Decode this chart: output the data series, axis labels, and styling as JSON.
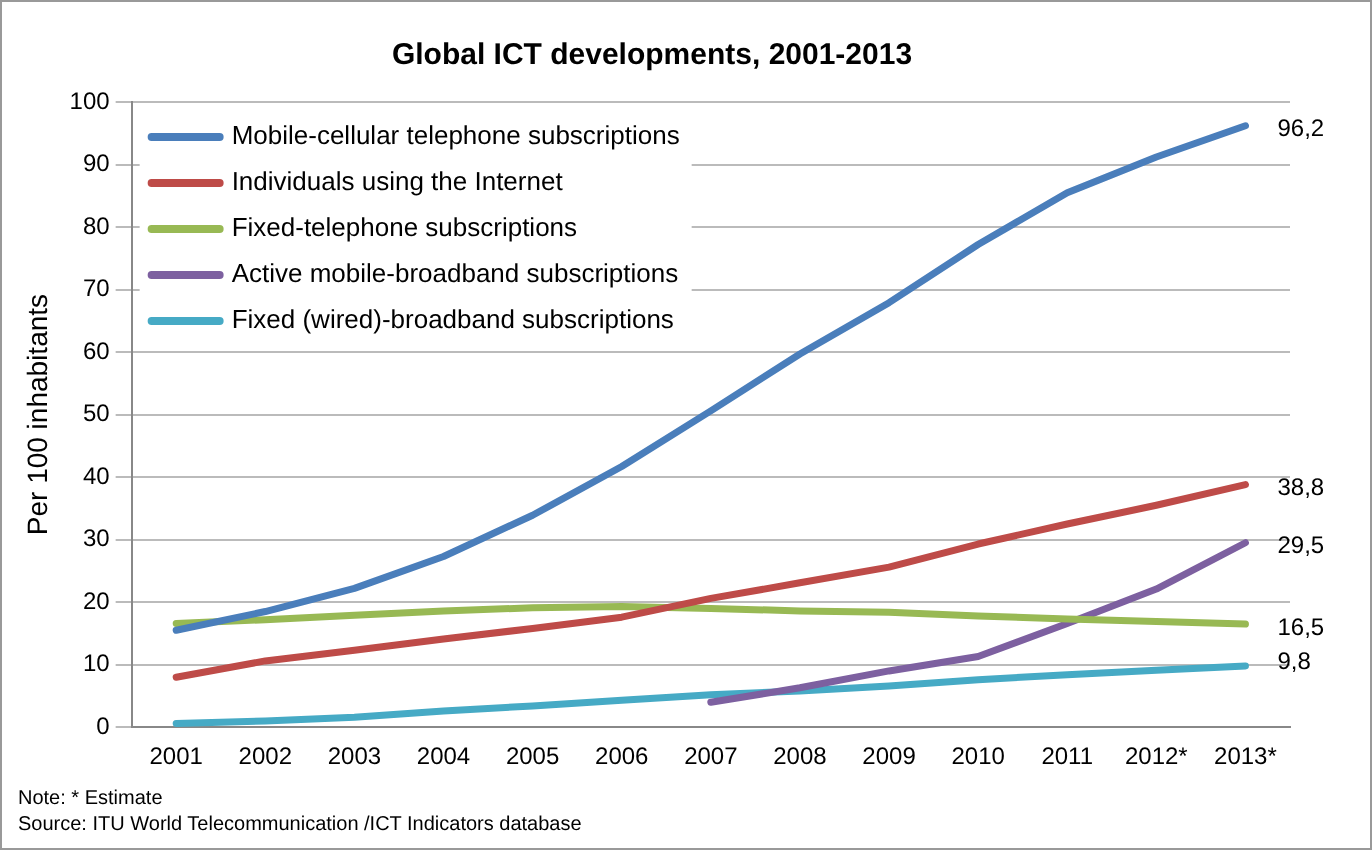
{
  "chart_data": {
    "type": "line",
    "title": "Global ICT developments, 2001-2013",
    "ylabel": "Per 100 inhabitants",
    "categories": [
      "2001",
      "2002",
      "2003",
      "2004",
      "2005",
      "2006",
      "2007",
      "2008",
      "2009",
      "2010",
      "2011",
      "2012*",
      "2013*"
    ],
    "series": [
      {
        "name": "Mobile-cellular telephone subscriptions",
        "color": "#4a7ebb",
        "values": [
          15.5,
          18.5,
          22.2,
          27.3,
          33.9,
          41.7,
          50.6,
          59.7,
          67.9,
          77.2,
          85.5,
          91.2,
          96.2
        ],
        "value_labels": [
          null,
          null,
          null,
          null,
          null,
          null,
          null,
          null,
          null,
          null,
          null,
          null,
          "96,2"
        ]
      },
      {
        "name": "Individuals using the Internet",
        "color": "#be4b48",
        "values": [
          8.0,
          10.6,
          12.3,
          14.1,
          15.8,
          17.6,
          20.6,
          23.1,
          25.6,
          29.3,
          32.5,
          35.5,
          38.8
        ],
        "value_labels": [
          null,
          null,
          null,
          null,
          null,
          null,
          null,
          null,
          null,
          null,
          null,
          null,
          "38,8"
        ]
      },
      {
        "name": "Fixed-telephone subscriptions",
        "color": "#98b954",
        "values": [
          16.6,
          17.2,
          17.9,
          18.6,
          19.1,
          19.3,
          19.0,
          18.6,
          18.4,
          17.8,
          17.3,
          16.9,
          16.5
        ],
        "value_labels": [
          null,
          null,
          null,
          null,
          null,
          null,
          null,
          null,
          null,
          null,
          null,
          null,
          "16,5"
        ]
      },
      {
        "name": "Active mobile-broadband subscriptions",
        "color": "#7d60a0",
        "values": [
          null,
          null,
          null,
          null,
          null,
          null,
          4.0,
          6.3,
          9.0,
          11.3,
          16.6,
          22.1,
          29.5
        ],
        "value_labels": [
          null,
          null,
          null,
          null,
          null,
          null,
          null,
          null,
          null,
          null,
          null,
          null,
          "29,5"
        ]
      },
      {
        "name": "Fixed (wired)-broadband subscriptions",
        "color": "#46aac5",
        "values": [
          0.6,
          1.0,
          1.6,
          2.6,
          3.4,
          4.3,
          5.2,
          5.8,
          6.6,
          7.6,
          8.4,
          9.1,
          9.8
        ],
        "value_labels": [
          null,
          null,
          null,
          null,
          null,
          null,
          null,
          null,
          null,
          null,
          null,
          null,
          "9,8"
        ]
      }
    ],
    "ylim": [
      0,
      100
    ],
    "yticks": [
      0,
      10,
      20,
      30,
      40,
      50,
      60,
      70,
      80,
      90,
      100
    ],
    "grid": "y",
    "legend": "top left",
    "marker": "none",
    "line_style": "solid",
    "annotations": [
      "Note: * Estimate",
      "Source:  ITU World Telecommunication /ICT Indicators database"
    ]
  }
}
